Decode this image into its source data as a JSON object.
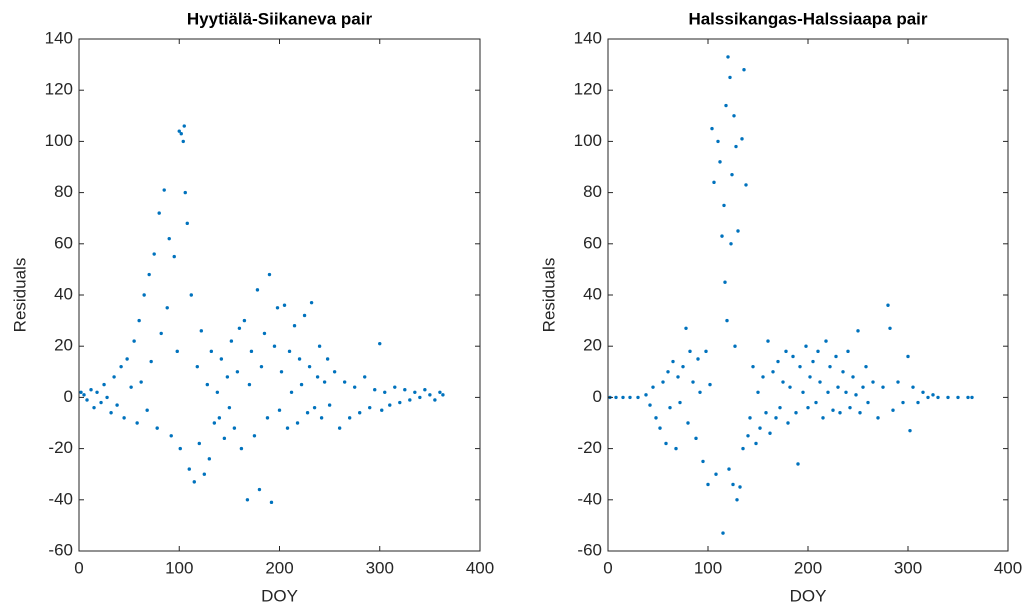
{
  "chart_data": [
    {
      "type": "scatter",
      "title": "Hyytiälä-Siikaneva pair",
      "xlabel": "DOY",
      "ylabel": "Residuals",
      "color": "#0072bd",
      "xlim": [
        0,
        400
      ],
      "ylim": [
        -60,
        140
      ],
      "xticks": [
        0,
        100,
        200,
        300,
        400
      ],
      "yticks": [
        -60,
        -40,
        -20,
        0,
        20,
        40,
        60,
        80,
        100,
        120,
        140
      ],
      "x": [
        2,
        5,
        8,
        12,
        15,
        18,
        22,
        25,
        28,
        32,
        35,
        38,
        42,
        45,
        48,
        52,
        55,
        58,
        60,
        62,
        65,
        68,
        70,
        72,
        75,
        78,
        80,
        82,
        85,
        88,
        90,
        92,
        95,
        98,
        100,
        101,
        102,
        104,
        105,
        106,
        108,
        110,
        112,
        115,
        118,
        120,
        122,
        125,
        128,
        130,
        132,
        135,
        138,
        140,
        142,
        145,
        148,
        150,
        152,
        155,
        158,
        160,
        162,
        165,
        168,
        170,
        172,
        175,
        178,
        180,
        182,
        185,
        188,
        190,
        192,
        195,
        198,
        200,
        202,
        205,
        208,
        210,
        212,
        215,
        218,
        220,
        222,
        225,
        228,
        230,
        232,
        235,
        238,
        240,
        242,
        245,
        248,
        250,
        255,
        260,
        265,
        270,
        275,
        280,
        285,
        290,
        295,
        300,
        302,
        305,
        310,
        315,
        320,
        325,
        330,
        335,
        340,
        345,
        350,
        355,
        360,
        363
      ],
      "values": [
        2,
        1,
        -1,
        3,
        -4,
        2,
        -2,
        5,
        0,
        -6,
        8,
        -3,
        12,
        -8,
        15,
        4,
        22,
        -10,
        30,
        6,
        40,
        -5,
        48,
        14,
        56,
        -12,
        72,
        25,
        81,
        35,
        62,
        -15,
        55,
        18,
        104,
        -20,
        103,
        100,
        106,
        80,
        68,
        -28,
        40,
        -33,
        12,
        -18,
        26,
        -30,
        5,
        -24,
        18,
        -10,
        2,
        -8,
        15,
        -16,
        8,
        -4,
        22,
        -12,
        10,
        27,
        -20,
        30,
        -40,
        5,
        18,
        -15,
        42,
        -36,
        12,
        25,
        -8,
        48,
        -41,
        20,
        35,
        -5,
        10,
        36,
        -12,
        18,
        2,
        28,
        -10,
        15,
        5,
        32,
        -6,
        12,
        37,
        -4,
        8,
        20,
        -8,
        6,
        15,
        -3,
        10,
        -12,
        6,
        -8,
        4,
        -6,
        8,
        -4,
        3,
        21,
        -5,
        2,
        -3,
        4,
        -2,
        3,
        -1,
        2,
        0,
        3,
        1,
        -1,
        2,
        1
      ]
    },
    {
      "type": "scatter",
      "title": "Halssikangas-Halssiaapa pair",
      "xlabel": "DOY",
      "ylabel": "Residuals",
      "color": "#0072bd",
      "xlim": [
        0,
        400
      ],
      "ylim": [
        -60,
        140
      ],
      "xticks": [
        0,
        100,
        200,
        300,
        400
      ],
      "yticks": [
        -60,
        -40,
        -20,
        0,
        20,
        40,
        60,
        80,
        100,
        120,
        140
      ],
      "x": [
        2,
        8,
        15,
        22,
        30,
        38,
        42,
        45,
        48,
        52,
        55,
        58,
        60,
        62,
        65,
        68,
        70,
        72,
        75,
        78,
        80,
        82,
        85,
        88,
        90,
        92,
        95,
        98,
        100,
        102,
        104,
        106,
        108,
        110,
        112,
        114,
        115,
        116,
        117,
        118,
        119,
        120,
        121,
        122,
        123,
        124,
        125,
        126,
        127,
        128,
        129,
        130,
        132,
        134,
        135,
        136,
        138,
        140,
        142,
        145,
        148,
        150,
        152,
        155,
        158,
        160,
        162,
        165,
        168,
        170,
        172,
        175,
        178,
        180,
        182,
        185,
        188,
        190,
        192,
        195,
        198,
        200,
        202,
        205,
        208,
        210,
        212,
        215,
        218,
        220,
        222,
        225,
        228,
        230,
        232,
        235,
        238,
        240,
        242,
        245,
        248,
        250,
        252,
        255,
        258,
        260,
        265,
        270,
        275,
        280,
        282,
        285,
        290,
        295,
        300,
        302,
        305,
        310,
        315,
        320,
        325,
        330,
        340,
        350,
        360,
        364
      ],
      "values": [
        0,
        0,
        0,
        0,
        0,
        1,
        -3,
        4,
        -8,
        -12,
        6,
        -18,
        10,
        -4,
        14,
        -20,
        8,
        -2,
        12,
        27,
        -10,
        18,
        6,
        -16,
        15,
        2,
        -25,
        18,
        -34,
        5,
        105,
        84,
        -30,
        100,
        92,
        63,
        -53,
        75,
        45,
        114,
        30,
        133,
        -28,
        125,
        60,
        87,
        -34,
        110,
        20,
        98,
        -40,
        65,
        -35,
        101,
        -20,
        128,
        83,
        -15,
        -8,
        12,
        -18,
        2,
        -12,
        8,
        -6,
        22,
        -14,
        10,
        -8,
        14,
        -4,
        6,
        18,
        -10,
        4,
        16,
        -6,
        -26,
        12,
        2,
        20,
        -4,
        8,
        14,
        -2,
        18,
        6,
        -8,
        22,
        2,
        12,
        -5,
        16,
        4,
        -6,
        10,
        2,
        18,
        -4,
        8,
        1,
        26,
        -6,
        4,
        12,
        -2,
        6,
        -8,
        4,
        36,
        27,
        -5,
        6,
        -2,
        16,
        -13,
        4,
        -2,
        2,
        0,
        1,
        0,
        0,
        0,
        0,
        0
      ]
    }
  ]
}
